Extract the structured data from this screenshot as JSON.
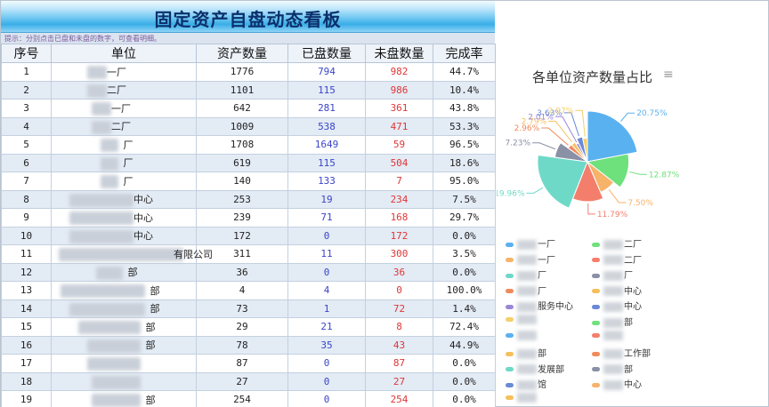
{
  "title": "固定资产自盘动态看板",
  "hint": "提示：分别点击已盘和未盘的数字，可查看明细。",
  "table": {
    "headers": [
      "序号",
      "单位",
      "资产数量",
      "已盘数量",
      "未盘数量",
      "完成率"
    ],
    "rows": [
      {
        "no": "1",
        "name": "一厂",
        "total": "1776",
        "done": "794",
        "undone": "982",
        "rate": "44.7%"
      },
      {
        "no": "2",
        "name": "二厂",
        "total": "1101",
        "done": "115",
        "undone": "986",
        "rate": "10.4%"
      },
      {
        "no": "3",
        "name": "一厂",
        "total": "642",
        "done": "281",
        "undone": "361",
        "rate": "43.8%"
      },
      {
        "no": "4",
        "name": "二厂",
        "total": "1009",
        "done": "538",
        "undone": "471",
        "rate": "53.3%"
      },
      {
        "no": "5",
        "name": "厂",
        "total": "1708",
        "done": "1649",
        "undone": "59",
        "rate": "96.5%"
      },
      {
        "no": "6",
        "name": "厂",
        "total": "619",
        "done": "115",
        "undone": "504",
        "rate": "18.6%"
      },
      {
        "no": "7",
        "name": "厂",
        "total": "140",
        "done": "133",
        "undone": "7",
        "rate": "95.0%"
      },
      {
        "no": "8",
        "name": "中心",
        "total": "253",
        "done": "19",
        "undone": "234",
        "rate": "7.5%"
      },
      {
        "no": "9",
        "name": "中心",
        "total": "239",
        "done": "71",
        "undone": "168",
        "rate": "29.7%"
      },
      {
        "no": "10",
        "name": "中心",
        "total": "172",
        "done": "0",
        "undone": "172",
        "rate": "0.0%"
      },
      {
        "no": "11",
        "name": "有限公司",
        "total": "311",
        "done": "11",
        "undone": "300",
        "rate": "3.5%"
      },
      {
        "no": "12",
        "name": "部",
        "total": "36",
        "done": "0",
        "undone": "36",
        "rate": "0.0%"
      },
      {
        "no": "13",
        "name": "部",
        "total": "4",
        "done": "4",
        "undone": "0",
        "rate": "100.0%"
      },
      {
        "no": "14",
        "name": "部",
        "total": "73",
        "done": "1",
        "undone": "72",
        "rate": "1.4%"
      },
      {
        "no": "15",
        "name": "部",
        "total": "29",
        "done": "21",
        "undone": "8",
        "rate": "72.4%"
      },
      {
        "no": "16",
        "name": "部",
        "total": "78",
        "done": "35",
        "undone": "43",
        "rate": "44.9%"
      },
      {
        "no": "17",
        "name": "",
        "total": "87",
        "done": "0",
        "undone": "87",
        "rate": "0.0%"
      },
      {
        "no": "18",
        "name": "",
        "total": "27",
        "done": "0",
        "undone": "27",
        "rate": "0.0%"
      },
      {
        "no": "19",
        "name": "部",
        "total": "254",
        "done": "0",
        "undone": "254",
        "rate": "0.0%"
      }
    ]
  },
  "menu_icon": "hamburger-menu-icon",
  "chart_data": {
    "type": "pie",
    "variant": "rose",
    "title": "各单位资产数量占比",
    "slices": [
      {
        "label": "20.75%",
        "value": 20.75,
        "color": "#5ab1ef"
      },
      {
        "label": "12.87%",
        "value": 12.87,
        "color": "#6ee07c"
      },
      {
        "label": "7.50%",
        "value": 7.5,
        "color": "#f6b36a"
      },
      {
        "label": "11.79%",
        "value": 11.79,
        "color": "#f47e6c"
      },
      {
        "label": "19.96%",
        "value": 19.96,
        "color": "#6fd9c8"
      },
      {
        "label": "7.23%",
        "value": 7.23,
        "color": "#8a90a6"
      },
      {
        "label": "2.96%",
        "value": 2.96,
        "color": "#f08a5a"
      },
      {
        "label": "2.79%",
        "value": 2.79,
        "color": "#f5c05c"
      },
      {
        "label": "2.01%",
        "value": 2.01,
        "color": "#9b86d6"
      },
      {
        "label": "3.63%",
        "value": 3.63,
        "color": "#6a8ad8"
      },
      {
        "label": "2.97%",
        "value": 2.97,
        "color": "#f4d06a"
      }
    ],
    "legend": [
      {
        "text": "一厂",
        "color": "#5ab1ef"
      },
      {
        "text": "二厂",
        "color": "#6ee07c"
      },
      {
        "text": "一厂",
        "color": "#f6b36a"
      },
      {
        "text": "二厂",
        "color": "#f47e6c"
      },
      {
        "text": "厂",
        "color": "#6fd9c8"
      },
      {
        "text": "厂",
        "color": "#8a90a6"
      },
      {
        "text": "厂",
        "color": "#f08a5a"
      },
      {
        "text": "中心",
        "color": "#f5c05c"
      },
      {
        "text": "服务中心",
        "color": "#9b86d6"
      },
      {
        "text": "中心",
        "color": "#6a8ad8"
      },
      {
        "text": "",
        "color": "#f4d06a"
      },
      {
        "text": "部",
        "color": "#6ee07c"
      },
      {
        "text": "",
        "color": "#5ab1ef"
      },
      {
        "text": "",
        "color": "#f47e6c"
      },
      {
        "text": "部",
        "color": "#f5c05c"
      },
      {
        "text": "工作部",
        "color": "#f08a5a"
      },
      {
        "text": "发展部",
        "color": "#6fd9c8"
      },
      {
        "text": "部",
        "color": "#8a90a6"
      },
      {
        "text": "馆",
        "color": "#6a8ad8"
      },
      {
        "text": "中心",
        "color": "#f6b36a"
      },
      {
        "text": "",
        "color": "#f5c05c"
      }
    ]
  }
}
